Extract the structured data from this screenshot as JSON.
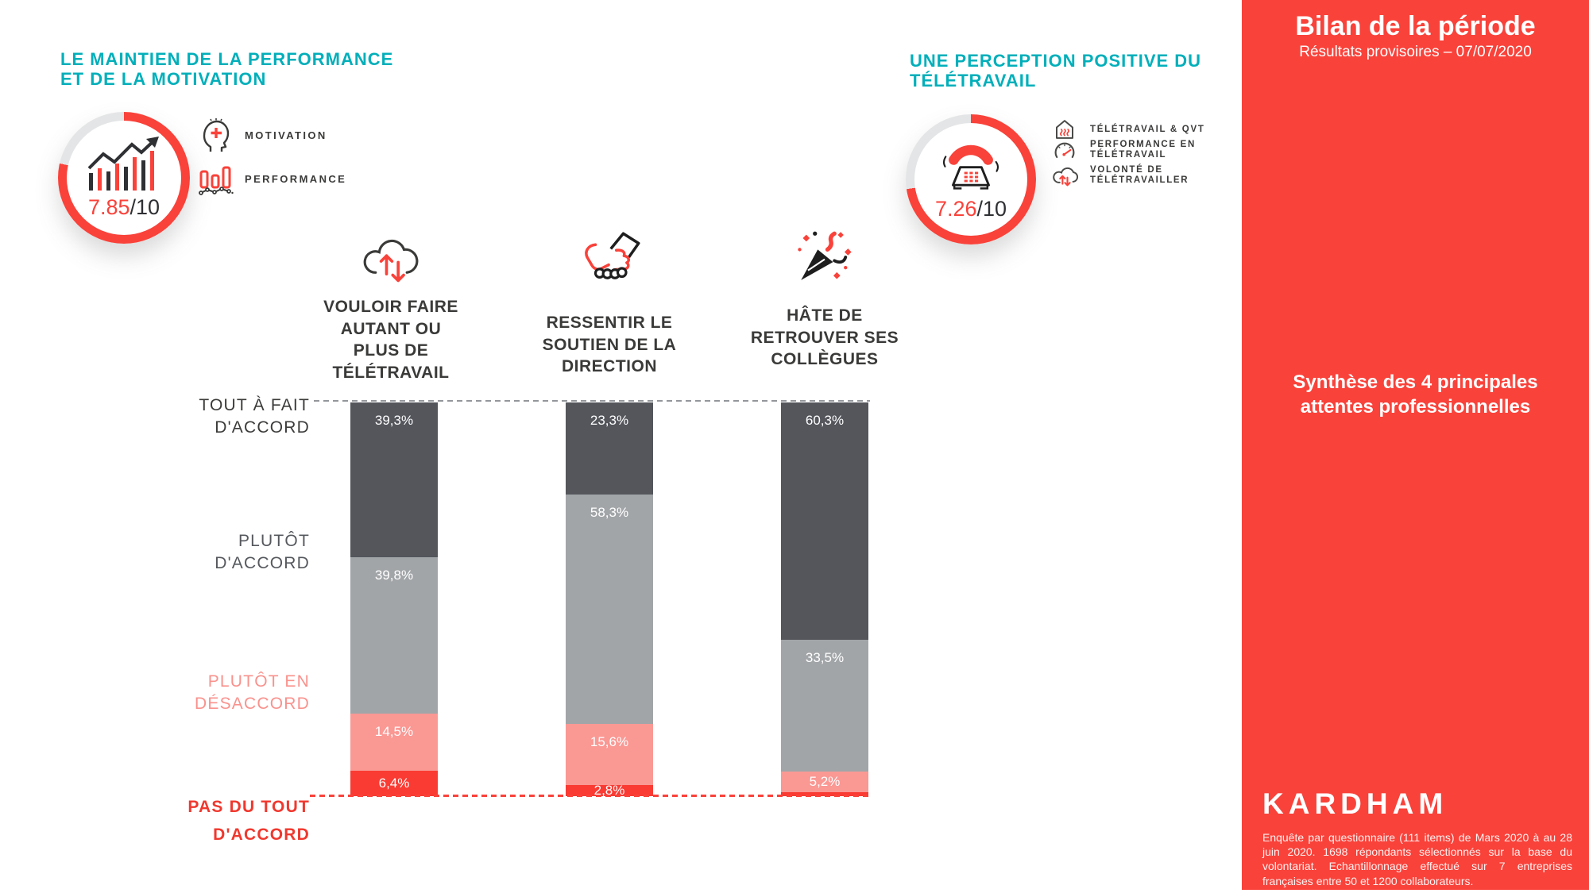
{
  "colors": {
    "accent_red": "#F9423A",
    "teal": "#00AFBA",
    "ring_track": "#E4E5E6",
    "header_text": "#3A3A39",
    "white": "#FFFFFF"
  },
  "left_panel": {
    "title_line1": "LE MAINTIEN DE LA PERFORMANCE",
    "title_line2": "ET DE LA MOTIVATION",
    "score": "7.85",
    "score_suffix": "/10",
    "items": [
      {
        "icon": "head-plus-icon",
        "label": "MOTIVATION"
      },
      {
        "icon": "performance-bars-icon",
        "label": "PERFORMANCE"
      }
    ]
  },
  "right_panel": {
    "title_line1": "UNE PERCEPTION POSITIVE DU",
    "title_line2": "TÉLÉTRAVAIL",
    "score": "7.26",
    "score_suffix": "/10",
    "items": [
      {
        "icon": "house-heat-icon",
        "label": "TÉLÉTRAVAIL & QVT"
      },
      {
        "icon": "speedometer-icon",
        "label": "PERFORMANCE EN\nTÉLÉTRAVAIL"
      },
      {
        "icon": "cloud-arrows-icon",
        "label": "VOLONTÉ DE\nTÉLÉTRAVAILLER"
      }
    ]
  },
  "sidebar": {
    "title": "Bilan de la période",
    "subtitle": "Résultats provisoires – 07/07/2020",
    "synthesis_line1": "Synthèse des 4 principales",
    "synthesis_line2": "attentes professionnelles",
    "logo": "KARDHAM",
    "footnote": "Enquête par questionnaire (111 items) de Mars 2020 à au 28 juin 2020. 1698 répondants sélectionnés sur la base du volontariat. Echantillonnage effectué sur 7 entreprises françaises entre 50 et 1200 collaborateurs."
  },
  "chart_data": {
    "type": "stacked-bar",
    "unit": "%",
    "ylim": [
      0,
      100
    ],
    "grid": false,
    "legend_position": "left",
    "categories": [
      "VOULOIR FAIRE AUTANT OU PLUS DE TÉLÉTRAVAIL",
      "RESSENTIR LE SOUTIEN DE LA DIRECTION",
      "HÂTE DE RETROUVER SES COLLÈGUES"
    ],
    "category_lines": [
      [
        "VOULOIR FAIRE",
        "AUTANT OU",
        "PLUS DE",
        "TÉLÉTRAVAIL"
      ],
      [
        "RESSENTIR LE",
        "SOUTIEN DE LA",
        "DIRECTION"
      ],
      [
        "HÂTE DE",
        "RETROUVER SES",
        "COLLÈGUES"
      ]
    ],
    "series": [
      {
        "name": "TOUT À FAIT D'ACCORD",
        "color": "#54565C",
        "values": [
          39.3,
          23.3,
          60.3
        ]
      },
      {
        "name": "PLUTÔT D'ACCORD",
        "color": "#A2A5A8",
        "values": [
          39.8,
          58.3,
          33.5
        ]
      },
      {
        "name": "PLUTÔT EN DÉSACCORD",
        "color": "#FA9894",
        "values": [
          14.5,
          15.6,
          5.2
        ]
      },
      {
        "name": "PAS DU TOUT D'ACCORD",
        "color": "#F93B33",
        "values": [
          6.4,
          2.8,
          1.0
        ]
      }
    ],
    "value_labels": [
      [
        "39,3%",
        "39,8%",
        "14,5%",
        "6,4%"
      ],
      [
        "23,3%",
        "58,3%",
        "15,6%",
        "2,8%"
      ],
      [
        "60,3%",
        "33,5%",
        "5,2%",
        ""
      ]
    ],
    "row_labels": [
      {
        "lines": [
          "TOUT À FAIT",
          "D'ACCORD"
        ],
        "color": "#3B3B3A"
      },
      {
        "lines": [
          "PLUTÔT",
          "D'ACCORD"
        ],
        "color": "#55585D"
      },
      {
        "lines": [
          "PLUTÔT EN",
          "DÉSACCORD"
        ],
        "color": "#F9928D"
      },
      {
        "lines": [
          "PAS DU TOUT",
          "D'ACCORD"
        ],
        "color": "#F0382E"
      }
    ]
  }
}
